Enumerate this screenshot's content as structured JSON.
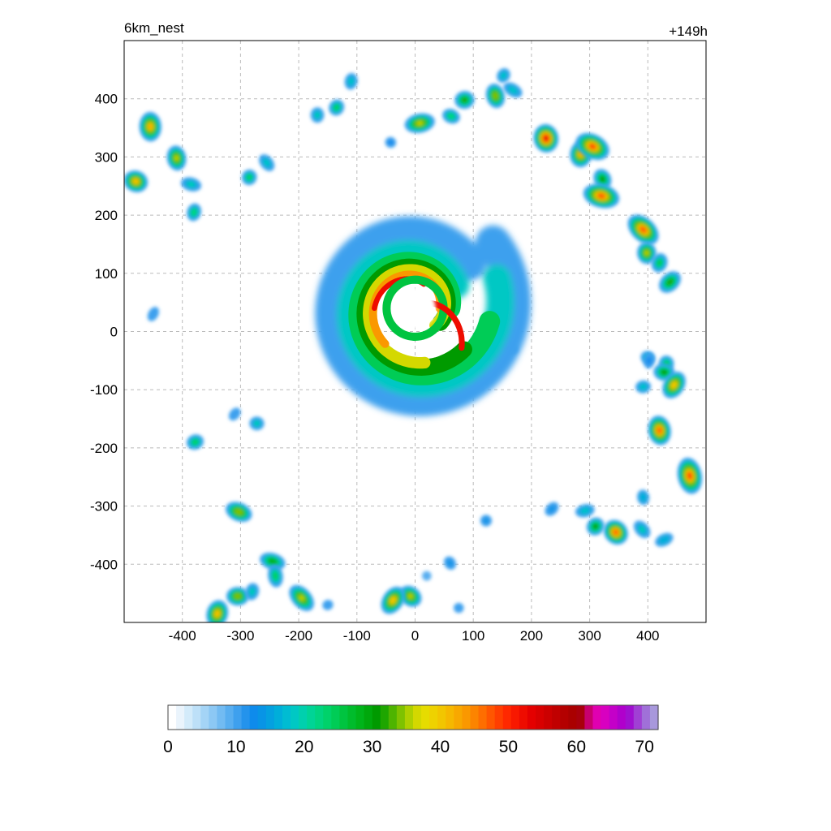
{
  "chart_data": {
    "type": "heatmap",
    "title_left": "6km_nest",
    "title_right": "+149h",
    "xlabel": "",
    "ylabel": "",
    "xlim": [
      -500,
      500
    ],
    "ylim": [
      -500,
      500
    ],
    "x_ticks": [
      -400,
      -300,
      -200,
      -100,
      0,
      100,
      200,
      300,
      400
    ],
    "y_ticks": [
      400,
      300,
      200,
      100,
      0,
      -100,
      -200,
      -300,
      -400
    ],
    "grid": true,
    "colorbar": {
      "min": 0,
      "max": 72,
      "ticks": [
        0,
        10,
        20,
        30,
        40,
        50,
        60,
        70
      ],
      "colors": [
        "#ffffff",
        "#eaf4fc",
        "#d3ebfa",
        "#bde0f8",
        "#a4d4f6",
        "#8cc8f4",
        "#72bbf2",
        "#58aef0",
        "#3ea0ee",
        "#2493ec",
        "#0e8bec",
        "#0894e6",
        "#04a0e0",
        "#00aeda",
        "#00bcd2",
        "#00c8c4",
        "#00d0ae",
        "#00d496",
        "#00d480",
        "#00d26a",
        "#00cc56",
        "#00c440",
        "#00bc2c",
        "#00b41a",
        "#00a80c",
        "#009a00",
        "#1ea600",
        "#4eb400",
        "#7ec200",
        "#aed000",
        "#d4d800",
        "#e6dc00",
        "#eed200",
        "#f2c600",
        "#f6b800",
        "#f8a800",
        "#fa9800",
        "#fc8400",
        "#fe6e00",
        "#ff5600",
        "#ff3e00",
        "#ff2800",
        "#f81800",
        "#ee0c00",
        "#e40000",
        "#d80000",
        "#cc0000",
        "#c00000",
        "#b40000",
        "#aa0000",
        "#a8000c",
        "#c8006e",
        "#e000b0",
        "#d800c0",
        "#c400c8",
        "#b000cc",
        "#a010d0",
        "#a040d4",
        "#a070d8",
        "#a898dc"
      ]
    },
    "series": [
      {
        "kind": "cell",
        "x": -455,
        "y": 352,
        "peak": 44
      },
      {
        "kind": "cell",
        "x": -480,
        "y": 258,
        "peak": 42
      },
      {
        "kind": "cell",
        "x": -410,
        "y": 298,
        "peak": 36
      },
      {
        "kind": "cell",
        "x": -385,
        "y": 253,
        "peak": 20
      },
      {
        "kind": "cell",
        "x": -380,
        "y": 205,
        "peak": 22
      },
      {
        "kind": "cell",
        "x": -255,
        "y": 290,
        "peak": 18
      },
      {
        "kind": "cell",
        "x": -285,
        "y": 265,
        "peak": 24
      },
      {
        "kind": "cell",
        "x": -168,
        "y": 372,
        "peak": 20
      },
      {
        "kind": "cell",
        "x": -135,
        "y": 385,
        "peak": 24
      },
      {
        "kind": "cell",
        "x": -110,
        "y": 430,
        "peak": 18
      },
      {
        "kind": "cell",
        "x": -42,
        "y": 325,
        "peak": 12
      },
      {
        "kind": "cell",
        "x": 8,
        "y": 358,
        "peak": 36
      },
      {
        "kind": "cell",
        "x": 62,
        "y": 370,
        "peak": 22
      },
      {
        "kind": "cell",
        "x": 85,
        "y": 398,
        "peak": 32
      },
      {
        "kind": "cell",
        "x": 138,
        "y": 405,
        "peak": 34
      },
      {
        "kind": "cell",
        "x": 152,
        "y": 440,
        "peak": 18
      },
      {
        "kind": "cell",
        "x": 168,
        "y": 415,
        "peak": 18
      },
      {
        "kind": "cell",
        "x": 225,
        "y": 332,
        "peak": 52
      },
      {
        "kind": "cell",
        "x": 285,
        "y": 305,
        "peak": 44
      },
      {
        "kind": "cell",
        "x": 305,
        "y": 318,
        "peak": 50
      },
      {
        "kind": "cell",
        "x": 322,
        "y": 262,
        "peak": 30
      },
      {
        "kind": "cell",
        "x": 320,
        "y": 233,
        "peak": 48
      },
      {
        "kind": "cell",
        "x": 392,
        "y": 175,
        "peak": 48
      },
      {
        "kind": "cell",
        "x": 398,
        "y": 135,
        "peak": 36
      },
      {
        "kind": "cell",
        "x": 420,
        "y": 118,
        "peak": 26
      },
      {
        "kind": "cell",
        "x": 438,
        "y": 85,
        "peak": 32
      },
      {
        "kind": "cell",
        "x": 400,
        "y": -45,
        "peak": 18
      },
      {
        "kind": "cell",
        "x": 432,
        "y": -55,
        "peak": 24
      },
      {
        "kind": "cell",
        "x": 428,
        "y": -70,
        "peak": 30
      },
      {
        "kind": "cell",
        "x": 445,
        "y": -92,
        "peak": 40
      },
      {
        "kind": "cell",
        "x": 392,
        "y": -95,
        "peak": 18
      },
      {
        "kind": "cell",
        "x": 420,
        "y": -170,
        "peak": 46
      },
      {
        "kind": "cell",
        "x": 472,
        "y": -248,
        "peak": 50
      },
      {
        "kind": "cell",
        "x": 392,
        "y": -285,
        "peak": 16
      },
      {
        "kind": "cell",
        "x": 345,
        "y": -345,
        "peak": 46
      },
      {
        "kind": "cell",
        "x": 310,
        "y": -335,
        "peak": 30
      },
      {
        "kind": "cell",
        "x": 390,
        "y": -340,
        "peak": 20
      },
      {
        "kind": "cell",
        "x": 428,
        "y": -358,
        "peak": 16
      },
      {
        "kind": "cell",
        "x": 292,
        "y": -308,
        "peak": 18
      },
      {
        "kind": "cell",
        "x": 235,
        "y": -305,
        "peak": 14
      },
      {
        "kind": "cell",
        "x": 122,
        "y": -325,
        "peak": 14
      },
      {
        "kind": "cell",
        "x": 60,
        "y": -398,
        "peak": 14
      },
      {
        "kind": "cell",
        "x": -8,
        "y": -455,
        "peak": 36
      },
      {
        "kind": "cell",
        "x": -38,
        "y": -462,
        "peak": 40
      },
      {
        "kind": "cell",
        "x": -195,
        "y": -458,
        "peak": 36
      },
      {
        "kind": "cell",
        "x": -305,
        "y": -455,
        "peak": 34
      },
      {
        "kind": "cell",
        "x": -280,
        "y": -447,
        "peak": 20
      },
      {
        "kind": "cell",
        "x": -245,
        "y": -395,
        "peak": 28
      },
      {
        "kind": "cell",
        "x": -240,
        "y": -420,
        "peak": 24
      },
      {
        "kind": "cell",
        "x": -340,
        "y": -485,
        "peak": 42
      },
      {
        "kind": "cell",
        "x": -303,
        "y": -310,
        "peak": 34
      },
      {
        "kind": "cell",
        "x": -378,
        "y": -190,
        "peak": 24
      },
      {
        "kind": "cell",
        "x": -272,
        "y": -158,
        "peak": 20
      },
      {
        "kind": "cell",
        "x": -310,
        "y": -142,
        "peak": 10
      },
      {
        "kind": "cell",
        "x": -450,
        "y": 30,
        "peak": 10
      },
      {
        "kind": "cell",
        "x": 140,
        "y": 12,
        "peak": 40
      },
      {
        "kind": "cell",
        "x": 168,
        "y": -30,
        "peak": 10
      },
      {
        "kind": "cell",
        "x": 75,
        "y": -475,
        "peak": 10
      },
      {
        "kind": "cell",
        "x": 402,
        "y": -50,
        "peak": 12
      },
      {
        "kind": "cell",
        "x": -150,
        "y": -470,
        "peak": 10
      },
      {
        "kind": "cell",
        "x": 20,
        "y": -420,
        "peak": 8
      }
    ],
    "cyclone": {
      "center_x": 0,
      "center_y": 40,
      "eye_radius": 35,
      "outer_radius": 175,
      "peak": 52
    }
  }
}
